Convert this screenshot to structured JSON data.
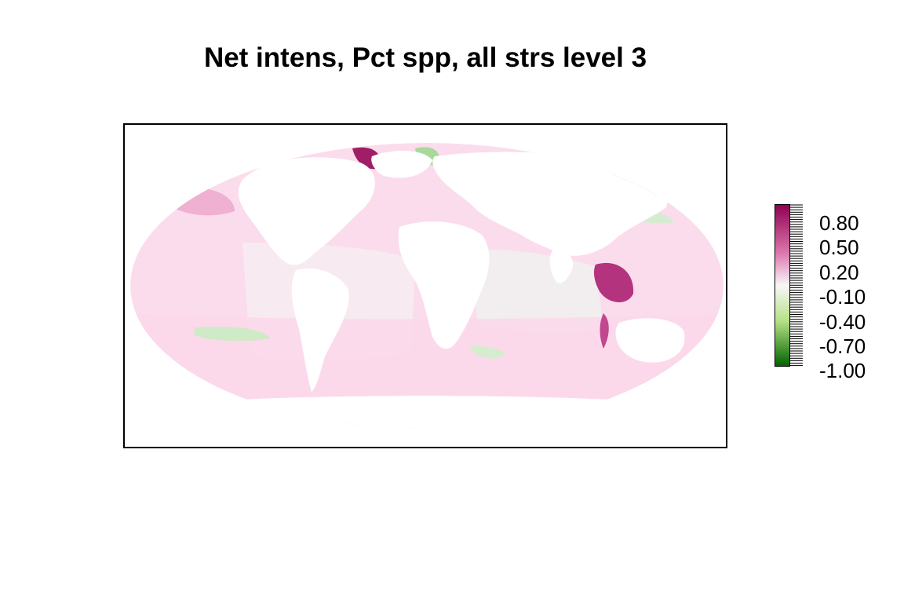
{
  "title": "Net intens, Pct spp, all strs level 3",
  "legend": {
    "labels": [
      "0.80",
      "0.50",
      "0.20",
      "-0.10",
      "-0.40",
      "-0.70",
      "-1.00"
    ],
    "range": [
      -1.0,
      1.0
    ],
    "colors": {
      "max": "#8e0152",
      "high": "#de77ae",
      "mid": "#f7f7f7",
      "low": "#b8e186",
      "min": "#006400"
    }
  },
  "map": {
    "projection": "mollweide",
    "land_color": "#ffffff",
    "dominant_ocean_color": "#fbdcec",
    "neutral_ocean_color": "#f1f1f1"
  }
}
